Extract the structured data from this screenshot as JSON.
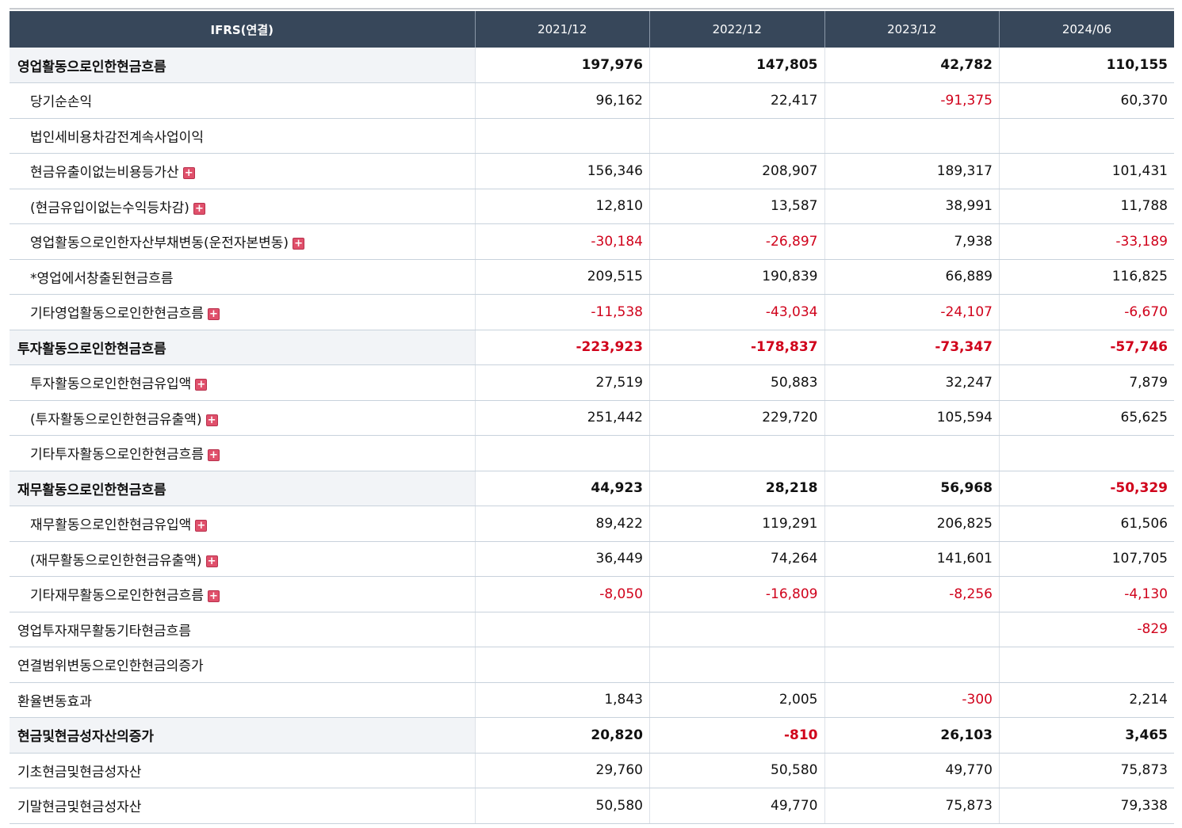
{
  "header": {
    "label": "IFRS(연결)",
    "periods": [
      "2021/12",
      "2022/12",
      "2023/12",
      "2024/06"
    ]
  },
  "rows": [
    {
      "label": "영업활동으로인한현금흐름",
      "level": 0,
      "bold": true,
      "expand": false,
      "values": [
        "197,976",
        "147,805",
        "42,782",
        "110,155"
      ]
    },
    {
      "label": "당기순손익",
      "level": 1,
      "bold": false,
      "expand": false,
      "values": [
        "96,162",
        "22,417",
        "-91,375",
        "60,370"
      ]
    },
    {
      "label": "법인세비용차감전계속사업이익",
      "level": 1,
      "bold": false,
      "expand": false,
      "values": [
        "",
        "",
        "",
        ""
      ]
    },
    {
      "label": "현금유출이없는비용등가산",
      "level": 1,
      "bold": false,
      "expand": true,
      "values": [
        "156,346",
        "208,907",
        "189,317",
        "101,431"
      ]
    },
    {
      "label": "(현금유입이없는수익등차감)",
      "level": 1,
      "bold": false,
      "expand": true,
      "values": [
        "12,810",
        "13,587",
        "38,991",
        "11,788"
      ]
    },
    {
      "label": "영업활동으로인한자산부채변동(운전자본변동)",
      "level": 1,
      "bold": false,
      "expand": true,
      "values": [
        "-30,184",
        "-26,897",
        "7,938",
        "-33,189"
      ]
    },
    {
      "label": "*영업에서창출된현금흐름",
      "level": 1,
      "bold": false,
      "expand": false,
      "values": [
        "209,515",
        "190,839",
        "66,889",
        "116,825"
      ]
    },
    {
      "label": "기타영업활동으로인한현금흐름",
      "level": 1,
      "bold": false,
      "expand": true,
      "values": [
        "-11,538",
        "-43,034",
        "-24,107",
        "-6,670"
      ]
    },
    {
      "label": "투자활동으로인한현금흐름",
      "level": 0,
      "bold": true,
      "expand": false,
      "values": [
        "-223,923",
        "-178,837",
        "-73,347",
        "-57,746"
      ]
    },
    {
      "label": "투자활동으로인한현금유입액",
      "level": 1,
      "bold": false,
      "expand": true,
      "values": [
        "27,519",
        "50,883",
        "32,247",
        "7,879"
      ]
    },
    {
      "label": "(투자활동으로인한현금유출액)",
      "level": 1,
      "bold": false,
      "expand": true,
      "values": [
        "251,442",
        "229,720",
        "105,594",
        "65,625"
      ]
    },
    {
      "label": "기타투자활동으로인한현금흐름",
      "level": 1,
      "bold": false,
      "expand": true,
      "values": [
        "",
        "",
        "",
        ""
      ]
    },
    {
      "label": "재무활동으로인한현금흐름",
      "level": 0,
      "bold": true,
      "expand": false,
      "values": [
        "44,923",
        "28,218",
        "56,968",
        "-50,329"
      ]
    },
    {
      "label": "재무활동으로인한현금유입액",
      "level": 1,
      "bold": false,
      "expand": true,
      "values": [
        "89,422",
        "119,291",
        "206,825",
        "61,506"
      ]
    },
    {
      "label": "(재무활동으로인한현금유출액)",
      "level": 1,
      "bold": false,
      "expand": true,
      "values": [
        "36,449",
        "74,264",
        "141,601",
        "107,705"
      ]
    },
    {
      "label": "기타재무활동으로인한현금흐름",
      "level": 1,
      "bold": false,
      "expand": true,
      "values": [
        "-8,050",
        "-16,809",
        "-8,256",
        "-4,130"
      ]
    },
    {
      "label": "영업투자재무활동기타현금흐름",
      "level": 0,
      "bold": false,
      "expand": false,
      "values": [
        "",
        "",
        "",
        "-829"
      ]
    },
    {
      "label": "연결범위변동으로인한현금의증가",
      "level": 0,
      "bold": false,
      "expand": false,
      "values": [
        "",
        "",
        "",
        ""
      ]
    },
    {
      "label": "환율변동효과",
      "level": 0,
      "bold": false,
      "expand": false,
      "values": [
        "1,843",
        "2,005",
        "-300",
        "2,214"
      ]
    },
    {
      "label": "현금및현금성자산의증가",
      "level": 0,
      "bold": true,
      "expand": false,
      "values": [
        "20,820",
        "-810",
        "26,103",
        "3,465"
      ]
    },
    {
      "label": "기초현금및현금성자산",
      "level": 0,
      "bold": false,
      "expand": false,
      "values": [
        "29,760",
        "50,580",
        "49,770",
        "75,873"
      ]
    },
    {
      "label": "기말현금및현금성자산",
      "level": 0,
      "bold": false,
      "expand": false,
      "values": [
        "50,580",
        "49,770",
        "75,873",
        "79,338"
      ]
    }
  ],
  "icons": {
    "expand": "plus-icon"
  },
  "colors": {
    "header_bg": "#37475a",
    "negative": "#d0021b",
    "expand_icon": "#e0506b"
  }
}
